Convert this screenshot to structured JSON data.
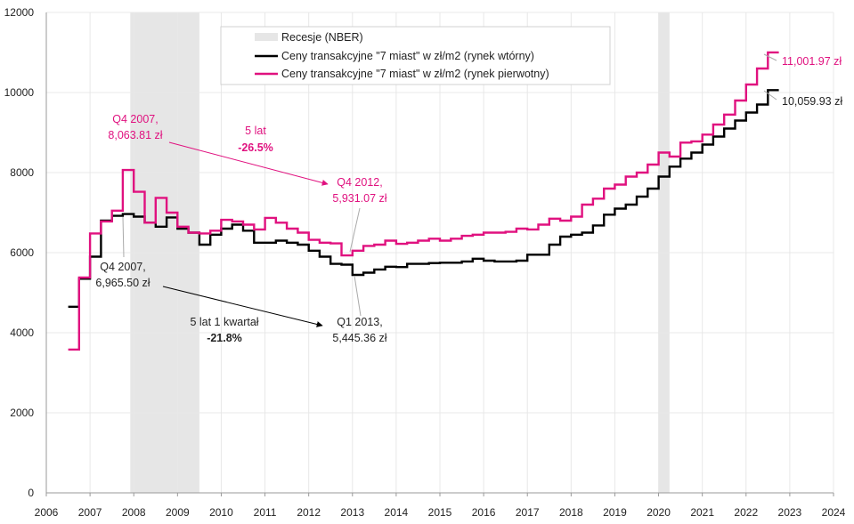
{
  "chart_data": {
    "type": "line",
    "xlim": [
      2006,
      2024
    ],
    "ylim": [
      0,
      12000
    ],
    "x_ticks": [
      "2006",
      "2007",
      "2008",
      "2009",
      "2010",
      "2011",
      "2012",
      "2013",
      "2014",
      "2015",
      "2016",
      "2017",
      "2018",
      "2019",
      "2020",
      "2021",
      "2022",
      "2023",
      "2024"
    ],
    "y_ticks": [
      "0",
      "2000",
      "4000",
      "6000",
      "8000",
      "10000",
      "12000"
    ],
    "grid": true,
    "legend_position": "top-center",
    "legend": {
      "recession": "Recesje (NBER)",
      "secondary": "Ceny transakcyjne \"7 miast\" w zł/m2 (rynek wtórny)",
      "primary": "Ceny transakcyjne \"7 miast\" w zł/m2 (rynek pierwotny)"
    },
    "colors": {
      "secondary": "#000000",
      "primary": "#e0117f",
      "recession": "#e6e6e6",
      "grid": "#e8e8e8"
    },
    "recessions": [
      {
        "start": 2007.92,
        "end": 2009.5
      },
      {
        "start": 2020.0,
        "end": 2020.25
      }
    ],
    "series": [
      {
        "key": "secondary",
        "name": "Ceny transakcyjne \"7 miast\" w zł/m2 (rynek wtórny)",
        "x": [
          2006.5,
          2006.75,
          2007.0,
          2007.25,
          2007.5,
          2007.75,
          2008.0,
          2008.25,
          2008.5,
          2008.75,
          2009.0,
          2009.25,
          2009.5,
          2009.75,
          2010.0,
          2010.25,
          2010.5,
          2010.75,
          2011.0,
          2011.25,
          2011.5,
          2011.75,
          2012.0,
          2012.25,
          2012.5,
          2012.75,
          2013.0,
          2013.25,
          2013.5,
          2013.75,
          2014.0,
          2014.25,
          2014.5,
          2014.75,
          2015.0,
          2015.25,
          2015.5,
          2015.75,
          2016.0,
          2016.25,
          2016.5,
          2016.75,
          2017.0,
          2017.25,
          2017.5,
          2017.75,
          2018.0,
          2018.25,
          2018.5,
          2018.75,
          2019.0,
          2019.25,
          2019.5,
          2019.75,
          2020.0,
          2020.25,
          2020.5,
          2020.75,
          2021.0,
          2021.25,
          2021.5,
          2021.75,
          2022.0,
          2022.25,
          2022.5
        ],
        "values": [
          4650,
          5350,
          5900,
          6800,
          6920,
          6965.5,
          6900,
          6750,
          6650,
          6880,
          6600,
          6500,
          6200,
          6450,
          6600,
          6700,
          6550,
          6250,
          6250,
          6300,
          6250,
          6200,
          6050,
          5900,
          5720,
          5700,
          5445.36,
          5500,
          5580,
          5650,
          5640,
          5720,
          5720,
          5740,
          5750,
          5750,
          5780,
          5850,
          5800,
          5780,
          5780,
          5800,
          5950,
          5950,
          6200,
          6400,
          6450,
          6500,
          6680,
          6950,
          7100,
          7200,
          7400,
          7600,
          7900,
          8150,
          8350,
          8500,
          8700,
          8900,
          9100,
          9300,
          9500,
          9700,
          10059.93
        ]
      },
      {
        "key": "primary",
        "name": "Ceny transakcyjne \"7 miast\" w zł/m2 (rynek pierwotny)",
        "x": [
          2006.5,
          2006.75,
          2007.0,
          2007.25,
          2007.5,
          2007.75,
          2008.0,
          2008.25,
          2008.5,
          2008.75,
          2009.0,
          2009.25,
          2009.5,
          2009.75,
          2010.0,
          2010.25,
          2010.5,
          2010.75,
          2011.0,
          2011.25,
          2011.5,
          2011.75,
          2012.0,
          2012.25,
          2012.5,
          2012.75,
          2013.0,
          2013.25,
          2013.5,
          2013.75,
          2014.0,
          2014.25,
          2014.5,
          2014.75,
          2015.0,
          2015.25,
          2015.5,
          2015.75,
          2016.0,
          2016.25,
          2016.5,
          2016.75,
          2017.0,
          2017.25,
          2017.5,
          2017.75,
          2018.0,
          2018.25,
          2018.5,
          2018.75,
          2019.0,
          2019.25,
          2019.5,
          2019.75,
          2020.0,
          2020.25,
          2020.5,
          2020.75,
          2021.0,
          2021.25,
          2021.5,
          2021.75,
          2022.0,
          2022.25,
          2022.5
        ],
        "values": [
          3580,
          5380,
          6480,
          6780,
          7050,
          8063.81,
          7520,
          6750,
          7370,
          7000,
          6650,
          6500,
          6480,
          6550,
          6820,
          6780,
          6700,
          6580,
          6870,
          6750,
          6600,
          6500,
          6320,
          6250,
          6230,
          5931.07,
          6050,
          6170,
          6200,
          6300,
          6220,
          6250,
          6300,
          6350,
          6300,
          6350,
          6420,
          6450,
          6500,
          6500,
          6520,
          6600,
          6580,
          6700,
          6850,
          6800,
          6900,
          7200,
          7350,
          7600,
          7700,
          7900,
          8000,
          8200,
          8500,
          8400,
          8750,
          8780,
          8950,
          9200,
          9450,
          9800,
          10200,
          10600,
          11001.97
        ]
      }
    ],
    "annotations": {
      "peak_primary": {
        "line1": "Q4 2007,",
        "line2": "8,063.81 zł"
      },
      "trough_primary": {
        "line1": "Q4 2012,",
        "line2": "5,931.07 zł"
      },
      "change_primary": {
        "line1": "5 lat",
        "line2": "-26.5%"
      },
      "peak_secondary": {
        "line1": "Q4 2007,",
        "line2": "6,965.50 zł"
      },
      "trough_secondary": {
        "line1": "Q1 2013,",
        "line2": "5,445.36 zł"
      },
      "change_secondary": {
        "line1": "5 lat 1 kwartał",
        "line2": "-21.8%"
      },
      "last_primary": "11,001.97 zł",
      "last_secondary": "10,059.93 zł"
    }
  }
}
